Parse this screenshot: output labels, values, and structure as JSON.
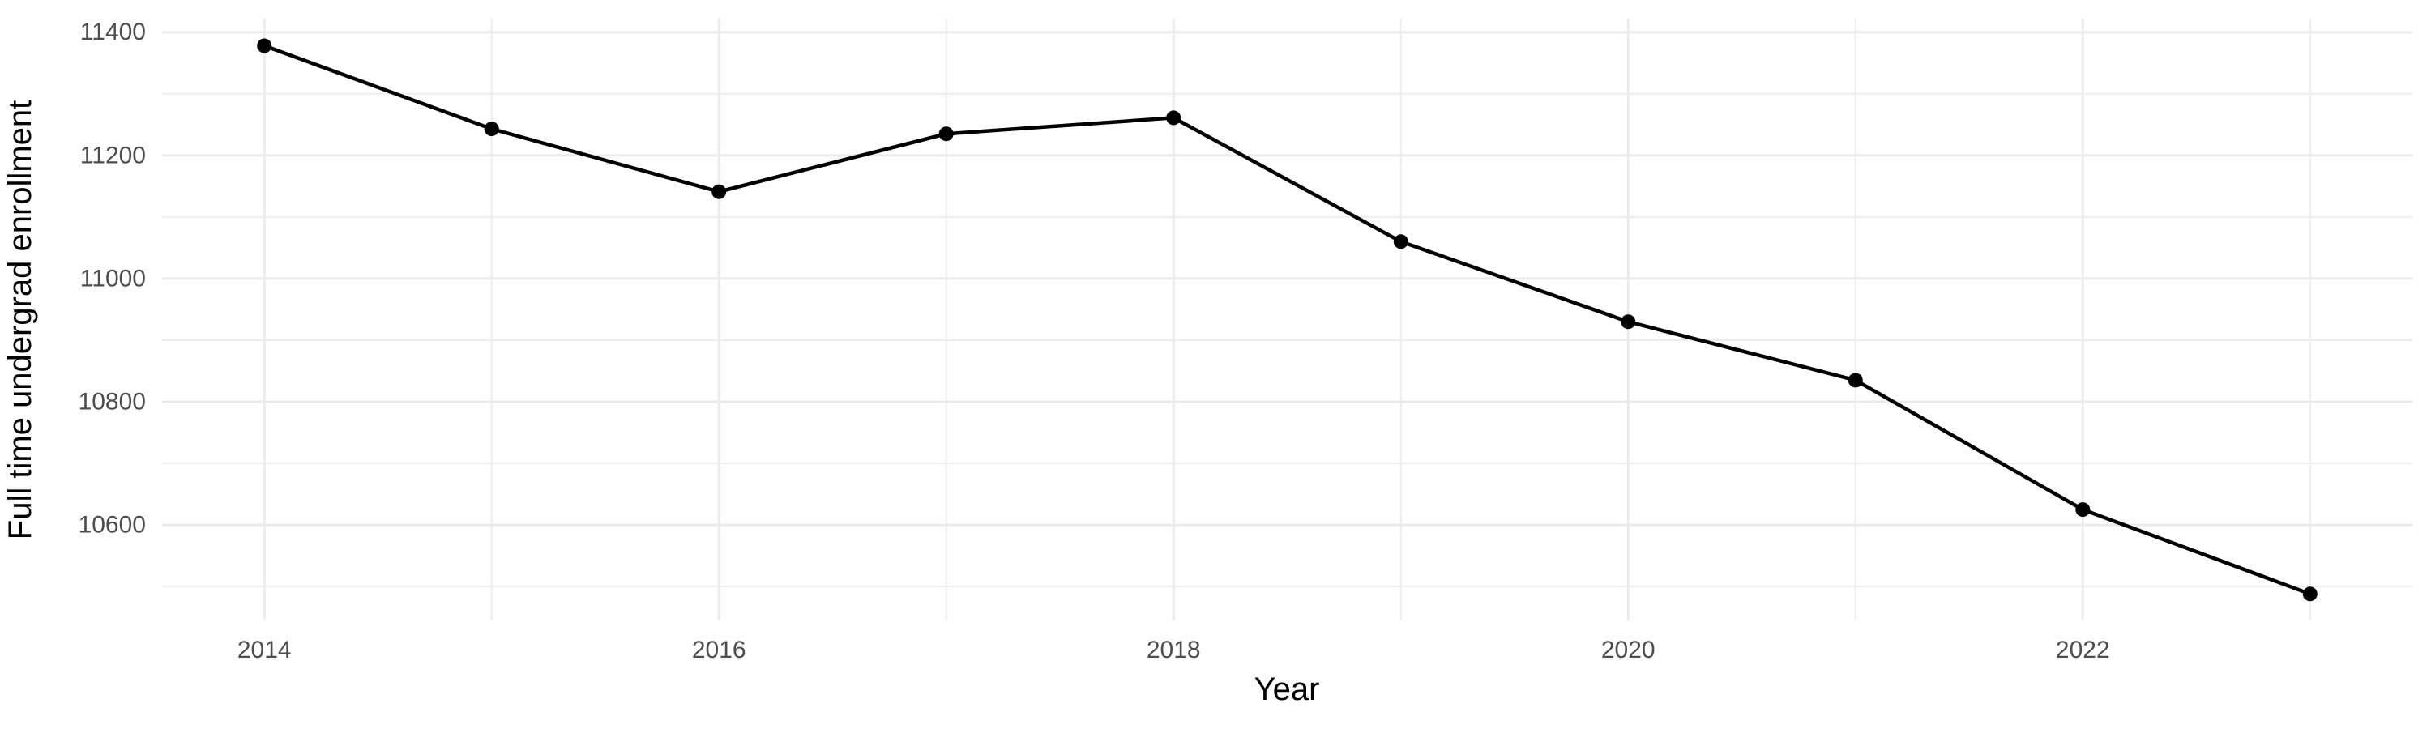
{
  "chart_data": {
    "type": "line",
    "title": "",
    "xlabel": "Year",
    "ylabel": "Full time undergrad enrollment",
    "x": [
      2014,
      2015,
      2016,
      2017,
      2018,
      2019,
      2020,
      2021,
      2022,
      2023
    ],
    "series": [
      {
        "name": "Full time undergrad enrollment",
        "values": [
          11378,
          11243,
          11141,
          11235,
          11261,
          11060,
          10930,
          10835,
          10625,
          10488
        ]
      }
    ],
    "xlim": [
      2013.55,
      2023.45
    ],
    "ylim": [
      10445,
      11422
    ],
    "x_major_ticks": [
      2014,
      2016,
      2018,
      2020,
      2022
    ],
    "x_minor_gridlines": [
      2015,
      2017,
      2019,
      2021,
      2023
    ],
    "y_major_ticks": [
      11400,
      11200,
      11000,
      10800,
      10600
    ],
    "y_minor_gridlines": [
      11300,
      11100,
      10900,
      10700,
      10500
    ],
    "grid": true,
    "legend": "none",
    "style": {
      "background": "#FFFFFF",
      "grid_major_color": "#EBEBEB",
      "grid_minor_color": "#EDEDED",
      "line_color": "#000000",
      "point_color": "#000000",
      "tick_label_color": "#4D4D4D",
      "axis_title_color": "#000000"
    }
  }
}
